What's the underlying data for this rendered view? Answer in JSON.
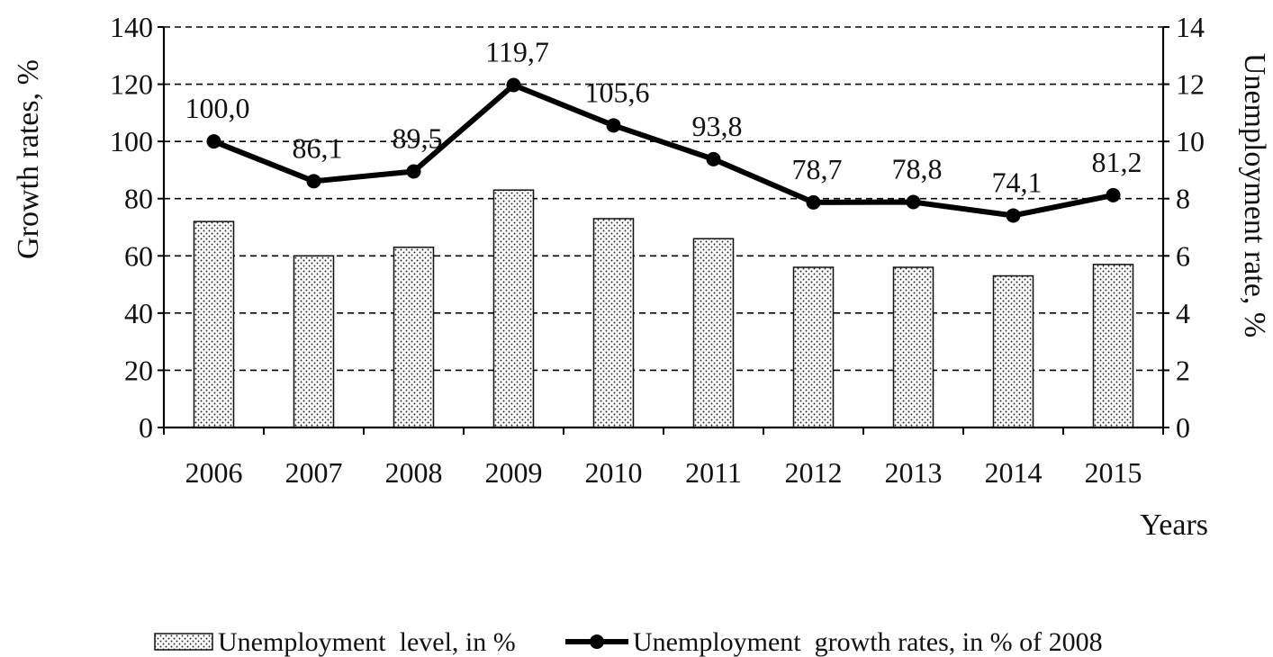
{
  "chart_data": {
    "type": "bar",
    "categories": [
      "2006",
      "2007",
      "2008",
      "2009",
      "2010",
      "2011",
      "2012",
      "2013",
      "2014",
      "2015"
    ],
    "xlabel": "Years",
    "ylabel_left": "Growth rates, %",
    "ylabel_right": "Unemployment rate, %",
    "ylim_left": [
      0,
      140
    ],
    "ylim_right": [
      0,
      14
    ],
    "yticks_left": [
      "0",
      "20",
      "40",
      "60",
      "80",
      "100",
      "120",
      "140"
    ],
    "yticks_right": [
      "0",
      "2",
      "4",
      "6",
      "8",
      "10",
      "12",
      "14"
    ],
    "grid": "horizontal dashed",
    "legend_position": "bottom",
    "series": [
      {
        "name": "Unemployment  level, in %",
        "type": "bar",
        "axis": "right",
        "pattern": "dotted",
        "values": [
          7.2,
          6.0,
          6.3,
          8.3,
          7.3,
          6.6,
          5.6,
          5.6,
          5.3,
          5.7
        ]
      },
      {
        "name": "Unemployment  growth rates, in % of 2008",
        "type": "line",
        "axis": "left",
        "color": "#000000",
        "values": [
          100.0,
          86.1,
          89.5,
          119.7,
          105.6,
          93.8,
          78.7,
          78.8,
          74.1,
          81.2
        ],
        "labels": [
          "100,0",
          "86,1",
          "89,5",
          "119,7",
          "105,6",
          "93,8",
          "78,7",
          "78,8",
          "74,1",
          "81,2"
        ]
      }
    ]
  }
}
